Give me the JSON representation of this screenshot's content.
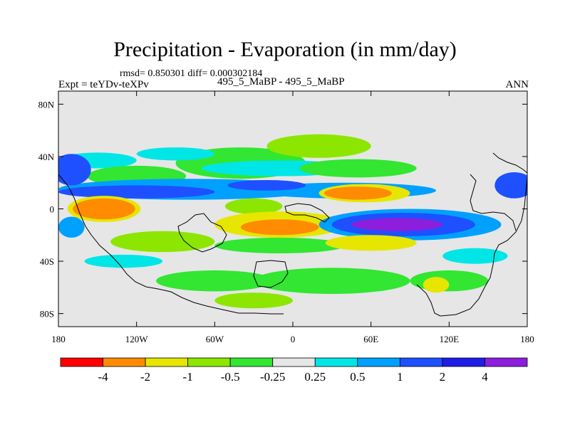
{
  "chart_data": {
    "type": "heatmap",
    "title": "Precipitation - Evaporation (in mm/day)",
    "subtitle": "rmsd= 0.850301 diff= 0.000302184",
    "left_label": "Expt = teYDv-teXPv",
    "center_label": "495_5_MaBP - 495_5_MaBP",
    "right_label": "ANN",
    "x_ticks": [
      "180",
      "120W",
      "60W",
      "0",
      "60E",
      "120E",
      "180"
    ],
    "x_tick_values": [
      -180,
      -120,
      -60,
      0,
      60,
      120,
      180
    ],
    "y_ticks": [
      "80N",
      "40N",
      "0",
      "40S",
      "80S"
    ],
    "y_tick_values": [
      80,
      40,
      0,
      -40,
      -80
    ],
    "xlim": [
      -180,
      180
    ],
    "ylim": [
      -90,
      90
    ],
    "colorbar": {
      "labels": [
        "-4",
        "-2",
        "-1",
        "-0.5",
        "-0.25",
        "0.25",
        "0.5",
        "1",
        "2",
        "4"
      ],
      "colors": [
        "#ff0000",
        "#ff8c00",
        "#e6e600",
        "#8ce600",
        "#32e632",
        "#e6e6e6",
        "#00e6e6",
        "#00a0ff",
        "#1e50ff",
        "#1e1ee6",
        "#8c1edc"
      ]
    },
    "regions": [
      {
        "name": "npac-40N-cyan",
        "lon": -150,
        "lat": 37,
        "rx": 30,
        "ry": 6,
        "color": "#00e6e6"
      },
      {
        "name": "npac-subtrop-green",
        "lon": -120,
        "lat": 25,
        "rx": 38,
        "ry": 8,
        "color": "#32e632"
      },
      {
        "name": "nh-midlat-green",
        "lon": -40,
        "lat": 35,
        "rx": 50,
        "ry": 12,
        "color": "#32e632"
      },
      {
        "name": "nh-midlat-light",
        "lon": 20,
        "lat": 48,
        "rx": 40,
        "ry": 9,
        "color": "#8ce600"
      },
      {
        "name": "npac-midlat-cyan",
        "lon": -90,
        "lat": 42,
        "rx": 30,
        "ry": 5,
        "color": "#00e6e6"
      },
      {
        "name": "nh-cyan-band",
        "lon": -10,
        "lat": 31,
        "rx": 60,
        "ry": 6,
        "color": "#00e6e6"
      },
      {
        "name": "eurasia-green",
        "lon": 50,
        "lat": 31,
        "rx": 45,
        "ry": 7,
        "color": "#32e632"
      },
      {
        "name": "nh-blue-band",
        "lon": -80,
        "lat": 15,
        "rx": 100,
        "ry": 8,
        "color": "#00a0ff"
      },
      {
        "name": "nh-blue-east",
        "lon": 40,
        "lat": 14,
        "rx": 70,
        "ry": 6,
        "color": "#00a0ff"
      },
      {
        "name": "nh-dark-blue",
        "lon": -120,
        "lat": 13,
        "rx": 60,
        "ry": 5,
        "color": "#1e50ff"
      },
      {
        "name": "nh-dark-blue-2",
        "lon": -20,
        "lat": 18,
        "rx": 30,
        "ry": 4,
        "color": "#1e50ff"
      },
      {
        "name": "nh-west-blue",
        "lon": -170,
        "lat": 30,
        "rx": 15,
        "ry": 12,
        "color": "#1e50ff"
      },
      {
        "name": "nh-east-blue",
        "lon": 170,
        "lat": 18,
        "rx": 15,
        "ry": 10,
        "color": "#1e50ff"
      },
      {
        "name": "npac-orange-ring",
        "lon": -145,
        "lat": 0,
        "rx": 28,
        "ry": 10,
        "color": "#e6e600"
      },
      {
        "name": "npac-orange",
        "lon": -145,
        "lat": 0,
        "rx": 24,
        "ry": 8,
        "color": "#ff8c00"
      },
      {
        "name": "ne-yellow",
        "lon": 55,
        "lat": 12,
        "rx": 35,
        "ry": 7,
        "color": "#e6e600"
      },
      {
        "name": "ne-orange",
        "lon": 50,
        "lat": 12,
        "rx": 26,
        "ry": 5,
        "color": "#ff8c00"
      },
      {
        "name": "eq-atl-green",
        "lon": -30,
        "lat": 2,
        "rx": 22,
        "ry": 6,
        "color": "#8ce600"
      },
      {
        "name": "eq-central-yellow",
        "lon": -10,
        "lat": -12,
        "rx": 50,
        "ry": 10,
        "color": "#e6e600"
      },
      {
        "name": "eq-central-orange",
        "lon": -10,
        "lat": -14,
        "rx": 30,
        "ry": 6,
        "color": "#ff8c00"
      },
      {
        "name": "sh-blue-east",
        "lon": 90,
        "lat": -12,
        "rx": 70,
        "ry": 12,
        "color": "#00a0ff"
      },
      {
        "name": "sh-dark-blue",
        "lon": 85,
        "lat": -12,
        "rx": 55,
        "ry": 9,
        "color": "#1e50ff"
      },
      {
        "name": "sh-purple",
        "lon": 80,
        "lat": -12,
        "rx": 35,
        "ry": 5,
        "color": "#8c1edc"
      },
      {
        "name": "sh-west-blue",
        "lon": -170,
        "lat": -14,
        "rx": 10,
        "ry": 8,
        "color": "#00a0ff"
      },
      {
        "name": "sh-west-green",
        "lon": -100,
        "lat": -25,
        "rx": 40,
        "ry": 8,
        "color": "#8ce600"
      },
      {
        "name": "sh-mid-green",
        "lon": -10,
        "lat": -28,
        "rx": 50,
        "ry": 6,
        "color": "#32e632"
      },
      {
        "name": "sh-east-yellow",
        "lon": 60,
        "lat": -26,
        "rx": 35,
        "ry": 6,
        "color": "#e6e600"
      },
      {
        "name": "sh-band-green",
        "lon": 30,
        "lat": -55,
        "rx": 60,
        "ry": 10,
        "color": "#32e632"
      },
      {
        "name": "sh-band-green-2",
        "lon": -60,
        "lat": -55,
        "rx": 45,
        "ry": 8,
        "color": "#32e632"
      },
      {
        "name": "sh-east-green",
        "lon": 120,
        "lat": -55,
        "rx": 30,
        "ry": 8,
        "color": "#32e632"
      },
      {
        "name": "sh-yellow-patch",
        "lon": 110,
        "lat": -58,
        "rx": 10,
        "ry": 6,
        "color": "#e6e600"
      },
      {
        "name": "sh-cyan",
        "lon": -130,
        "lat": -40,
        "rx": 30,
        "ry": 5,
        "color": "#00e6e6"
      },
      {
        "name": "sh-cyan-2",
        "lon": 140,
        "lat": -36,
        "rx": 25,
        "ry": 6,
        "color": "#00e6e6"
      },
      {
        "name": "sh-green-south",
        "lon": -30,
        "lat": -70,
        "rx": 30,
        "ry": 6,
        "color": "#8ce600"
      }
    ]
  }
}
